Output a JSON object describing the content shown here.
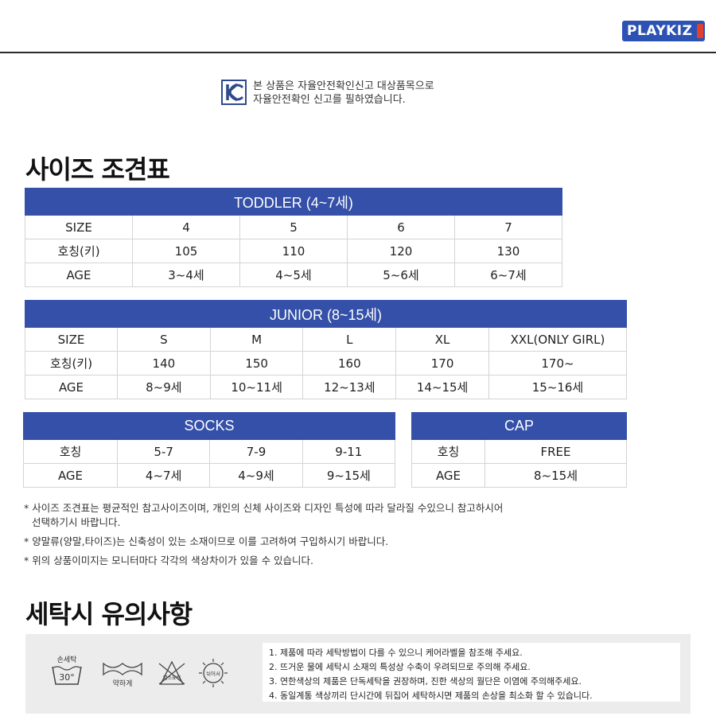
{
  "brand": {
    "logo_text": "PLAYKIZ"
  },
  "kc_notice": {
    "line1": "본 상품은 자율안전확인신고 대상품목으로",
    "line2": "자율안전확인 신고를 필하였습니다."
  },
  "size_chart_title": "사이즈 조견표",
  "toddler": {
    "header": "TODDLER (4~7세)",
    "rows": [
      {
        "label": "SIZE",
        "cells": [
          "4",
          "5",
          "6",
          "7"
        ]
      },
      {
        "label": "호칭(키)",
        "cells": [
          "105",
          "110",
          "120",
          "130"
        ]
      },
      {
        "label": "AGE",
        "cells": [
          "3~4세",
          "4~5세",
          "5~6세",
          "6~7세"
        ]
      }
    ]
  },
  "junior": {
    "header": "JUNIOR (8~15세)",
    "rows": [
      {
        "label": "SIZE",
        "cells": [
          "S",
          "M",
          "L",
          "XL",
          "XXL(ONLY GIRL)"
        ]
      },
      {
        "label": "호칭(키)",
        "cells": [
          "140",
          "150",
          "160",
          "170",
          "170~"
        ]
      },
      {
        "label": "AGE",
        "cells": [
          "8~9세",
          "10~11세",
          "12~13세",
          "14~15세",
          "15~16세"
        ]
      }
    ]
  },
  "socks": {
    "header": "SOCKS",
    "rows": [
      {
        "label": "호칭",
        "cells": [
          "5-7",
          "7-9",
          "9-11"
        ]
      },
      {
        "label": "AGE",
        "cells": [
          "4~7세",
          "4~9세",
          "9~15세"
        ]
      }
    ]
  },
  "cap": {
    "header": "CAP",
    "rows": [
      {
        "label": "호칭",
        "cells": [
          "FREE"
        ]
      },
      {
        "label": "AGE",
        "cells": [
          "8~15세"
        ]
      }
    ]
  },
  "notes": {
    "note1_line1": "* 사이즈 조견표는 평균적인 참고사이즈이며, 개인의 신체 사이즈와 디자인 특성에 따라 달라질 수있으니 참고하시어",
    "note1_line2": "선택하기시 바랍니다.",
    "note2": "* 양말류(양말,타이즈)는 신축성이 있는 소재이므로 이를 고려하여 구입하시기 바랍니다.",
    "note3": "* 위의 상품이미지는 모니터마다 각각의 색상차이가 있을 수 있습니다."
  },
  "care_title": "세탁시 유의사항",
  "care_icons": {
    "hand_wash_label": "손세탁",
    "hand_wash_temp": "30°",
    "gentle_label": "약하게",
    "no_bleach_label": "염소표백",
    "no_tumble_label": "뉘어서"
  },
  "care_instructions": [
    "1. 제품에 따라 세탁방법이 다를 수 있으니 케어라벨을 참조해 주세요.",
    "2. 뜨거운 물에 세탁시 소재의 특성상 수축이 우려되므로 주의해 주세요.",
    "3. 연한색상의 제품은 단독세탁을 권장하며, 진한 색상의 월단은 이염에 주의해주세요.",
    "4. 동일계통 색상끼리 단시간에 뒤집어 세탁하시면 제품의 손상을 최소화 할 수 있습니다."
  ],
  "colors": {
    "header_blue": "#3450a8",
    "logo_blue": "#2c52b3",
    "logo_red": "#e3412f"
  }
}
